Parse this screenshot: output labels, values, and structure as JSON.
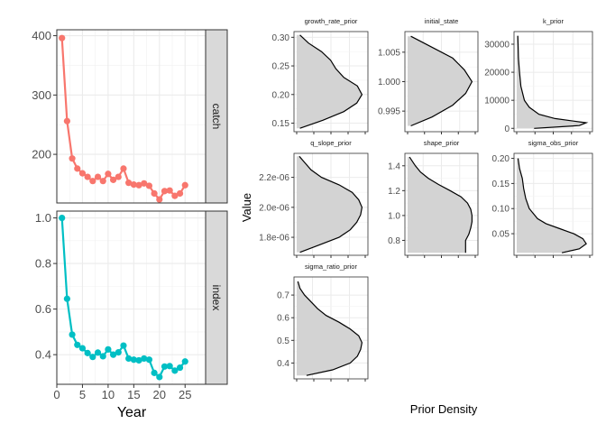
{
  "chart_data": [
    {
      "type": "line",
      "facets": [
        "catch",
        "index"
      ],
      "xlabel": "Year",
      "ylabel": "",
      "xlim": [
        0,
        29
      ],
      "xticks": [
        0,
        5,
        10,
        15,
        20,
        25
      ],
      "series": [
        {
          "name": "catch",
          "color": "#F8766D",
          "ylim": [
            118,
            410
          ],
          "yticks": [
            200,
            300,
            400
          ],
          "x": [
            1,
            2,
            3,
            4,
            5,
            6,
            7,
            8,
            9,
            10,
            11,
            12,
            13,
            14,
            15,
            16,
            17,
            18,
            19,
            20,
            21,
            22,
            23,
            24,
            25
          ],
          "values": [
            396,
            256,
            193,
            176,
            168,
            162,
            155,
            162,
            155,
            167,
            157,
            162,
            176,
            152,
            149,
            148,
            151,
            147,
            134,
            124,
            138,
            139,
            130,
            134,
            148
          ]
        },
        {
          "name": "index",
          "color": "#00BFC4",
          "ylim": [
            0.27,
            1.03
          ],
          "yticks": [
            0.4,
            0.6,
            0.8,
            1.0
          ],
          "x": [
            1,
            2,
            3,
            4,
            5,
            6,
            7,
            8,
            9,
            10,
            11,
            12,
            13,
            14,
            15,
            16,
            17,
            18,
            19,
            20,
            21,
            22,
            23,
            24,
            25
          ],
          "values": [
            1.0,
            0.645,
            0.488,
            0.443,
            0.428,
            0.407,
            0.39,
            0.409,
            0.393,
            0.423,
            0.4,
            0.41,
            0.44,
            0.383,
            0.378,
            0.375,
            0.383,
            0.378,
            0.32,
            0.302,
            0.348,
            0.35,
            0.33,
            0.343,
            0.37
          ]
        }
      ]
    },
    {
      "type": "area",
      "xlabel": "Prior Density",
      "ylabel": "Value",
      "panels": [
        {
          "title": "growth_rate_prior",
          "ylim": [
            0.135,
            0.31
          ],
          "yticks": [
            0.15,
            0.2,
            0.25,
            0.3
          ],
          "ytick_labels": [
            "0.15",
            "0.20",
            "0.25",
            "0.30"
          ],
          "y": [
            0.141,
            0.155,
            0.17,
            0.185,
            0.2,
            0.215,
            0.23,
            0.245,
            0.26,
            0.275,
            0.29,
            0.304
          ],
          "density": [
            0.05,
            0.4,
            0.72,
            0.92,
            1.0,
            0.93,
            0.72,
            0.6,
            0.52,
            0.38,
            0.18,
            0.05
          ]
        },
        {
          "title": "initial_state",
          "ylim": [
            0.9915,
            1.0085
          ],
          "yticks": [
            0.995,
            1.0,
            1.005
          ],
          "ytick_labels": [
            "0.995",
            "1.000",
            "1.005"
          ],
          "y": [
            0.9925,
            0.994,
            0.996,
            0.998,
            1.0,
            1.002,
            1.004,
            1.006,
            1.0077
          ],
          "density": [
            0.05,
            0.38,
            0.7,
            0.9,
            1.0,
            0.88,
            0.7,
            0.35,
            0.05
          ]
        },
        {
          "title": "k_prior",
          "ylim": [
            -1200,
            34500
          ],
          "yticks": [
            0,
            10000,
            20000,
            30000
          ],
          "ytick_labels": [
            "0",
            "10000",
            "20000",
            "30000"
          ],
          "y": [
            0,
            1000,
            2000,
            3500,
            5000,
            7500,
            10000,
            15000,
            20000,
            25000,
            30000,
            33000
          ],
          "density": [
            0.25,
            0.9,
            1.0,
            0.55,
            0.32,
            0.18,
            0.11,
            0.06,
            0.04,
            0.025,
            0.02,
            0.015
          ]
        },
        {
          "title": "q_slope_prior",
          "ylim": [
            1.68e-06,
            2.36e-06
          ],
          "yticks": [
            1.8e-06,
            2e-06,
            2.2e-06
          ],
          "ytick_labels": [
            "1.8e-06",
            "2.0e-06",
            "2.2e-06"
          ],
          "y": [
            1.7e-06,
            1.75e-06,
            1.8e-06,
            1.85e-06,
            1.9e-06,
            1.95e-06,
            2e-06,
            2.05e-06,
            2.1e-06,
            2.15e-06,
            2.2e-06,
            2.25e-06,
            2.3e-06,
            2.34e-06
          ],
          "density": [
            0.05,
            0.35,
            0.65,
            0.82,
            0.92,
            0.98,
            1.0,
            0.95,
            0.85,
            0.65,
            0.38,
            0.22,
            0.12,
            0.04
          ]
        },
        {
          "title": "shape_prior",
          "ylim": [
            0.68,
            1.5
          ],
          "yticks": [
            0.8,
            1.0,
            1.2,
            1.4
          ],
          "ytick_labels": [
            "0.8",
            "1.0",
            "1.2",
            "1.4"
          ],
          "y": [
            0.7,
            0.75,
            0.8,
            0.85,
            0.9,
            0.95,
            1.0,
            1.05,
            1.1,
            1.15,
            1.2,
            1.25,
            1.3,
            1.35,
            1.4,
            1.47
          ],
          "density": [
            0.9,
            0.9,
            0.9,
            0.95,
            0.98,
            1.0,
            1.0,
            0.98,
            0.93,
            0.83,
            0.66,
            0.48,
            0.32,
            0.2,
            0.12,
            0.03
          ]
        },
        {
          "title": "sigma_obs_prior",
          "ylim": [
            0.007,
            0.21
          ],
          "yticks": [
            0.05,
            0.1,
            0.15,
            0.2
          ],
          "ytick_labels": [
            "0.05",
            "0.10",
            "0.15",
            "0.20"
          ],
          "y": [
            0.012,
            0.02,
            0.03,
            0.04,
            0.05,
            0.06,
            0.07,
            0.08,
            0.1,
            0.12,
            0.14,
            0.16,
            0.18,
            0.2
          ],
          "density": [
            0.65,
            0.9,
            1.0,
            0.95,
            0.82,
            0.62,
            0.42,
            0.3,
            0.18,
            0.13,
            0.1,
            0.08,
            0.04,
            0.02
          ]
        },
        {
          "title": "sigma_ratio_prior",
          "ylim": [
            0.33,
            0.78
          ],
          "yticks": [
            0.4,
            0.5,
            0.6,
            0.7
          ],
          "ytick_labels": [
            "0.4",
            "0.5",
            "0.6",
            "0.7"
          ],
          "y": [
            0.345,
            0.37,
            0.4,
            0.43,
            0.46,
            0.49,
            0.52,
            0.55,
            0.58,
            0.61,
            0.64,
            0.67,
            0.7,
            0.73,
            0.76
          ],
          "density": [
            0.15,
            0.55,
            0.82,
            0.93,
            0.98,
            1.0,
            0.95,
            0.82,
            0.65,
            0.45,
            0.32,
            0.22,
            0.12,
            0.05,
            0.02
          ]
        }
      ]
    }
  ]
}
